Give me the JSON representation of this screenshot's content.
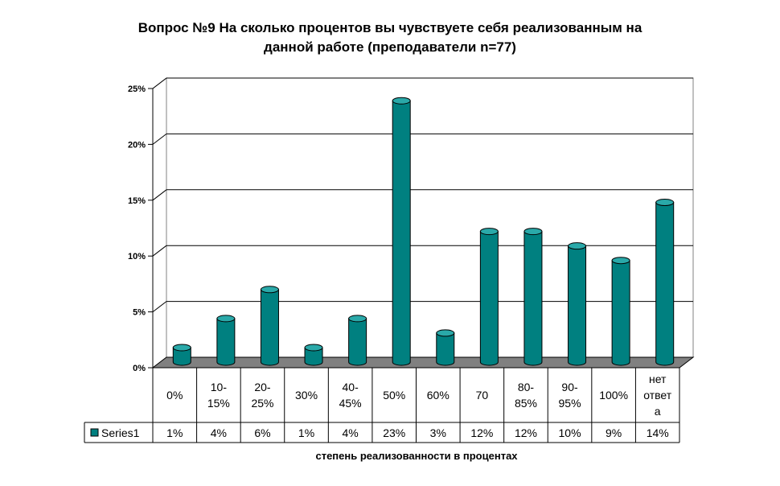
{
  "chart_data": {
    "type": "bar",
    "title_lines": [
      "Вопрос №9 На сколько процентов вы чувствуете себя реализованным на",
      "данной работе (преподаватели n=77)"
    ],
    "xlabel": "степень реализованности в процентах",
    "ylabel": "",
    "ylim": [
      0,
      25
    ],
    "yticks": [
      "0%",
      "5%",
      "10%",
      "15%",
      "20%",
      "25%"
    ],
    "grid": true,
    "categories": [
      [
        "0%"
      ],
      [
        "10-",
        "15%"
      ],
      [
        "20-",
        "25%"
      ],
      [
        "30%"
      ],
      [
        "40-",
        "45%"
      ],
      [
        "50%"
      ],
      [
        "60%"
      ],
      [
        "70"
      ],
      [
        "80-",
        "85%"
      ],
      [
        "90-",
        "95%"
      ],
      [
        "100%"
      ],
      [
        "нет",
        "ответ",
        "а"
      ]
    ],
    "series": [
      {
        "name": "Series1",
        "values": [
          1.3,
          3.9,
          6.5,
          1.3,
          3.9,
          23.4,
          2.6,
          11.7,
          11.7,
          10.4,
          9.1,
          14.3
        ],
        "value_labels": [
          "1%",
          "4%",
          "6%",
          "1%",
          "4%",
          "23%",
          "3%",
          "12%",
          "12%",
          "10%",
          "9%",
          "14%"
        ],
        "color": "#008080"
      }
    ],
    "colors": {
      "bar_front": "#008080",
      "bar_top": "#2aa9a9",
      "floor": "#808080",
      "grid": "#000000"
    }
  }
}
